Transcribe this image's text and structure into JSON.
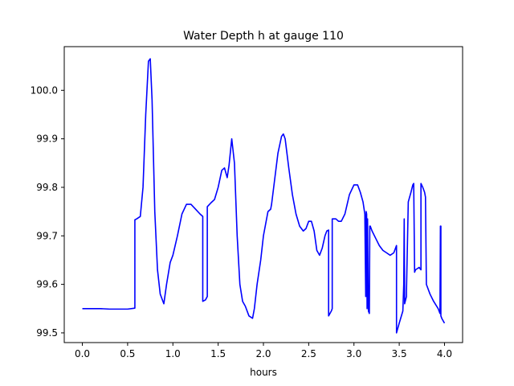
{
  "chart_data": {
    "type": "line",
    "title": "Water Depth h at gauge 110",
    "xlabel": "hours",
    "ylabel": "",
    "xlim": [
      -0.2,
      4.2
    ],
    "ylim": [
      99.48,
      100.09
    ],
    "xticks": [
      0.0,
      0.5,
      1.0,
      1.5,
      2.0,
      2.5,
      3.0,
      3.5,
      4.0
    ],
    "xtick_labels": [
      "0.0",
      "0.5",
      "1.0",
      "1.5",
      "2.0",
      "2.5",
      "3.0",
      "3.5",
      "4.0"
    ],
    "yticks": [
      99.5,
      99.6,
      99.7,
      99.8,
      99.9,
      100.0
    ],
    "ytick_labels": [
      "99.5",
      "99.6",
      "99.7",
      "99.8",
      "99.9",
      "100.0"
    ],
    "grid": false,
    "legend": "none",
    "series": [
      {
        "color": "#0000ff",
        "x": [
          0.0,
          0.1,
          0.2,
          0.3,
          0.4,
          0.5,
          0.58,
          0.58,
          0.6,
          0.64,
          0.67,
          0.7,
          0.73,
          0.75,
          0.77,
          0.8,
          0.83,
          0.86,
          0.9,
          0.93,
          0.97,
          1.0,
          1.05,
          1.1,
          1.15,
          1.2,
          1.25,
          1.3,
          1.33,
          1.33,
          1.36,
          1.38,
          1.38,
          1.42,
          1.46,
          1.5,
          1.54,
          1.57,
          1.6,
          1.62,
          1.65,
          1.68,
          1.71,
          1.74,
          1.77,
          1.8,
          1.84,
          1.88,
          1.9,
          1.93,
          1.97,
          2.0,
          2.05,
          2.08,
          2.09,
          2.12,
          2.16,
          2.2,
          2.22,
          2.24,
          2.28,
          2.32,
          2.36,
          2.4,
          2.44,
          2.47,
          2.5,
          2.53,
          2.56,
          2.59,
          2.62,
          2.65,
          2.68,
          2.7,
          2.72,
          2.72,
          2.75,
          2.76,
          2.76,
          2.8,
          2.83,
          2.86,
          2.9,
          2.95,
          3.0,
          3.04,
          3.07,
          3.1,
          3.12,
          3.13,
          3.135,
          3.14,
          3.145,
          3.15,
          3.16,
          3.17,
          3.175,
          3.18,
          3.2,
          3.24,
          3.28,
          3.32,
          3.36,
          3.4,
          3.44,
          3.47,
          3.47,
          3.5,
          3.54,
          3.55,
          3.555,
          3.56,
          3.58,
          3.58,
          3.6,
          3.63,
          3.65,
          3.66,
          3.67,
          3.68,
          3.72,
          3.74,
          3.74,
          3.76,
          3.78,
          3.79,
          3.8,
          3.84,
          3.88,
          3.93,
          3.95,
          3.955,
          3.96,
          3.96,
          3.97,
          4.0
        ],
        "y": [
          99.55,
          99.55,
          99.55,
          99.549,
          99.549,
          99.549,
          99.551,
          99.733,
          99.735,
          99.74,
          99.8,
          99.95,
          100.06,
          100.065,
          99.98,
          99.75,
          99.63,
          99.58,
          99.56,
          99.6,
          99.645,
          99.66,
          99.7,
          99.745,
          99.765,
          99.765,
          99.755,
          99.745,
          99.74,
          99.565,
          99.568,
          99.575,
          99.76,
          99.768,
          99.775,
          99.8,
          99.835,
          99.84,
          99.82,
          99.845,
          99.9,
          99.85,
          99.7,
          99.6,
          99.565,
          99.555,
          99.535,
          99.53,
          99.55,
          99.6,
          99.65,
          99.7,
          99.75,
          99.755,
          99.765,
          99.81,
          99.87,
          99.905,
          99.91,
          99.9,
          99.84,
          99.785,
          99.745,
          99.72,
          99.71,
          99.715,
          99.73,
          99.73,
          99.71,
          99.67,
          99.66,
          99.675,
          99.7,
          99.71,
          99.712,
          99.535,
          99.545,
          99.55,
          99.735,
          99.735,
          99.73,
          99.73,
          99.745,
          99.785,
          99.805,
          99.805,
          99.79,
          99.77,
          99.745,
          99.575,
          99.75,
          99.745,
          99.55,
          99.735,
          99.545,
          99.54,
          99.72,
          99.72,
          99.71,
          99.695,
          99.68,
          99.67,
          99.665,
          99.66,
          99.665,
          99.68,
          99.5,
          99.52,
          99.545,
          99.6,
          99.735,
          99.56,
          99.575,
          99.585,
          99.77,
          99.79,
          99.805,
          99.808,
          99.625,
          99.63,
          99.635,
          99.63,
          99.808,
          99.8,
          99.79,
          99.78,
          99.6,
          99.58,
          99.565,
          99.55,
          99.54,
          99.72,
          99.72,
          99.535,
          99.53,
          99.52
        ]
      }
    ]
  }
}
